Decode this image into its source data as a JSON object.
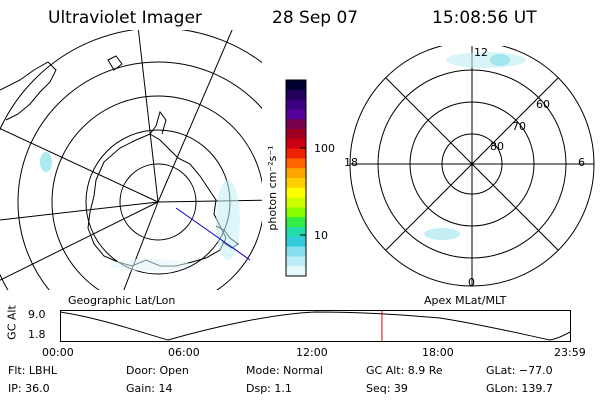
{
  "header": {
    "title": "Ultraviolet Imager",
    "date": "28 Sep 07",
    "time": "15:08:56 UT"
  },
  "left_map": {
    "label": "Geographic Lat/Lon"
  },
  "right_map": {
    "label": "Apex MLat/MLT",
    "mlt_labels": {
      "top": "12",
      "left": "18",
      "right": "6",
      "bottom": "0"
    },
    "lat_labels": [
      "60",
      "70",
      "80"
    ]
  },
  "colorbar": {
    "unit_label": "photon cm⁻²s⁻¹",
    "tick_labels": [
      "100",
      "10"
    ],
    "colors": [
      "#000033",
      "#22005a",
      "#3a0080",
      "#55009a",
      "#7a0050",
      "#a00020",
      "#cc0010",
      "#ee2200",
      "#ff6600",
      "#ffa500",
      "#ffd000",
      "#ffff00",
      "#ccff00",
      "#88ff00",
      "#33ee44",
      "#22ddaa",
      "#33ccdd",
      "#88e0ee",
      "#bbeef4",
      "#e6f8fa"
    ]
  },
  "timeline": {
    "ylabel": "GC Alt",
    "y_ticks": [
      "9.0",
      "1.8"
    ],
    "x_ticks": [
      "00:00",
      "06:00",
      "12:00",
      "18:00",
      "23:59"
    ],
    "current_hour": 15.15
  },
  "info": {
    "filter": "Flt: LBHL",
    "ip": "IP: 36.0",
    "door": "Door: Open",
    "gain": "Gain: 14",
    "mode": "Mode: Normal",
    "dsp": "Dsp:    1.1",
    "gc_alt": "GC Alt: 8.9 Re",
    "seq": "Seq: 39",
    "glat": "GLat: −77.0",
    "glon": "GLon: 139.7"
  }
}
